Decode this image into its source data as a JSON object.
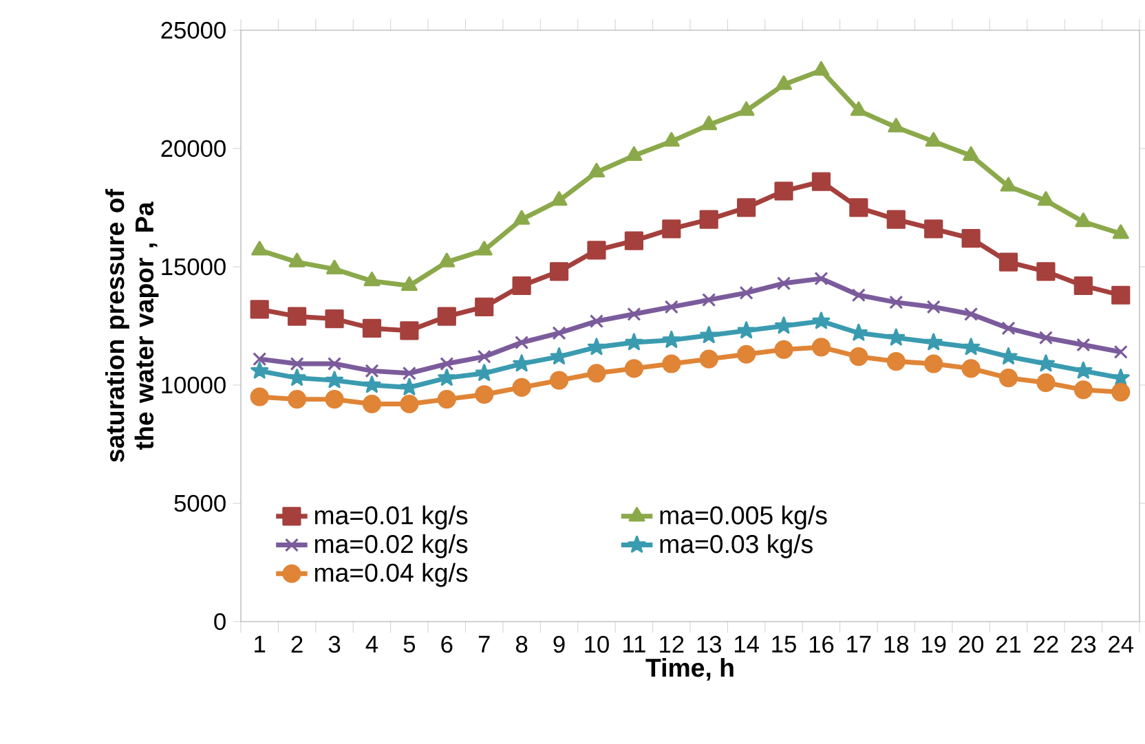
{
  "chart_data": {
    "type": "line",
    "xlabel": "Time, h",
    "ylabel": "saturation pressure of the water vapor , Pa",
    "categories": [
      "1",
      "2",
      "3",
      "4",
      "5",
      "6",
      "7",
      "8",
      "9",
      "10",
      "11",
      "12",
      "13",
      "14",
      "15",
      "16",
      "17",
      "18",
      "19",
      "20",
      "21",
      "22",
      "23",
      "24"
    ],
    "ylim": [
      0,
      25000
    ],
    "yticks": [
      0,
      5000,
      10000,
      15000,
      20000,
      25000
    ],
    "legend": "bottom left",
    "grid": false,
    "series": [
      {
        "name": "ma=0.01 kg/s",
        "color": "#a5403d",
        "marker": "square",
        "values": [
          13200,
          12900,
          12800,
          12400,
          12300,
          12900,
          13300,
          14200,
          14800,
          15700,
          16100,
          16600,
          17000,
          17500,
          18200,
          18600,
          17500,
          17000,
          16600,
          16200,
          15200,
          14800,
          14200,
          13800
        ]
      },
      {
        "name": "ma=0.005 kg/s",
        "color": "#8ba94a",
        "marker": "triangle",
        "values": [
          15700,
          15200,
          14900,
          14400,
          14200,
          15200,
          15700,
          17000,
          17800,
          19000,
          19700,
          20300,
          21000,
          21600,
          22700,
          23300,
          21600,
          20900,
          20300,
          19700,
          18400,
          17800,
          16900,
          16400
        ]
      },
      {
        "name": "ma=0.02 kg/s",
        "color": "#7b5b9c",
        "marker": "cross",
        "values": [
          11100,
          10900,
          10900,
          10600,
          10500,
          10900,
          11200,
          11800,
          12200,
          12700,
          13000,
          13300,
          13600,
          13900,
          14300,
          14500,
          13800,
          13500,
          13300,
          13000,
          12400,
          12000,
          11700,
          11400
        ]
      },
      {
        "name": "ma=0.03 kg/s",
        "color": "#3a9bb0",
        "marker": "star",
        "values": [
          10600,
          10300,
          10200,
          10000,
          9900,
          10300,
          10500,
          10900,
          11200,
          11600,
          11800,
          11900,
          12100,
          12300,
          12500,
          12700,
          12200,
          12000,
          11800,
          11600,
          11200,
          10900,
          10600,
          10300
        ]
      },
      {
        "name": "ma=0.04 kg/s",
        "color": "#e08436",
        "marker": "circle",
        "values": [
          9500,
          9400,
          9400,
          9200,
          9200,
          9400,
          9600,
          9900,
          10200,
          10500,
          10700,
          10900,
          11100,
          11300,
          11500,
          11600,
          11200,
          11000,
          10900,
          10700,
          10300,
          10100,
          9800,
          9700
        ]
      }
    ]
  }
}
